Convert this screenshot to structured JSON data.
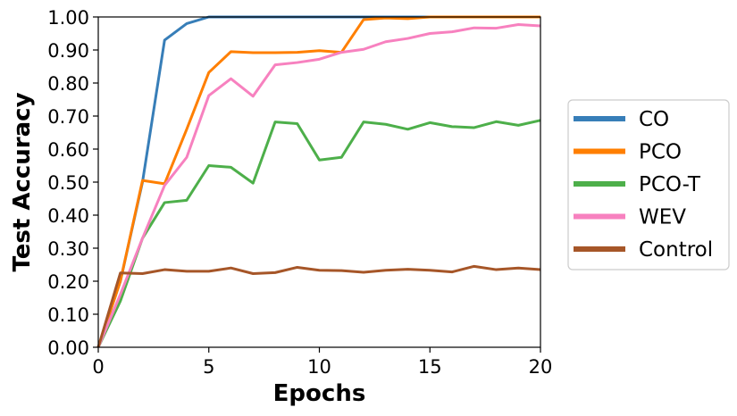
{
  "chart_data": {
    "type": "line",
    "title": "",
    "xlabel": "Epochs",
    "ylabel": "Test Accuracy",
    "xlim": [
      0,
      20
    ],
    "ylim": [
      0,
      1
    ],
    "x_ticks": [
      0,
      5,
      10,
      15,
      20
    ],
    "x_tick_labels": [
      "0",
      "5",
      "10",
      "15",
      "20"
    ],
    "y_ticks": [
      0,
      0.1,
      0.2,
      0.3,
      0.4,
      0.5,
      0.6,
      0.7,
      0.8,
      0.9,
      1.0
    ],
    "y_tick_labels": [
      "0.00",
      "0.10",
      "0.20",
      "0.30",
      "0.40",
      "0.50",
      "0.60",
      "0.70",
      "0.80",
      "0.90",
      "1.00"
    ],
    "grid": false,
    "legend_position": "right-outside",
    "x": [
      0,
      1,
      2,
      3,
      4,
      5,
      6,
      7,
      8,
      9,
      10,
      11,
      12,
      13,
      14,
      15,
      16,
      17,
      18,
      19,
      20
    ],
    "series": [
      {
        "name": "CO",
        "color": "#377eb8",
        "values": [
          0.0,
          0.2,
          0.5,
          0.93,
          0.98,
          1.0,
          1.0,
          1.0,
          1.0,
          1.0,
          1.0,
          1.0,
          1.0,
          1.0,
          1.0,
          1.0,
          1.0,
          1.0,
          1.0,
          1.0,
          1.0
        ]
      },
      {
        "name": "PCO",
        "color": "#ff7f00",
        "values": [
          0.0,
          0.2,
          0.505,
          0.495,
          0.66,
          0.832,
          0.895,
          0.892,
          0.892,
          0.893,
          0.898,
          0.893,
          0.992,
          0.997,
          0.995,
          1.0,
          1.0,
          1.0,
          1.0,
          1.0,
          1.0
        ]
      },
      {
        "name": "PCO-T",
        "color": "#4daf4a",
        "values": [
          0.0,
          0.14,
          0.33,
          0.438,
          0.445,
          0.55,
          0.545,
          0.497,
          0.682,
          0.677,
          0.567,
          0.575,
          0.682,
          0.675,
          0.66,
          0.68,
          0.668,
          0.665,
          0.683,
          0.672,
          0.687
        ]
      },
      {
        "name": "WEV",
        "color": "#f781bf",
        "values": [
          0.0,
          0.16,
          0.33,
          0.49,
          0.575,
          0.762,
          0.813,
          0.76,
          0.855,
          0.862,
          0.872,
          0.893,
          0.902,
          0.925,
          0.935,
          0.95,
          0.955,
          0.967,
          0.966,
          0.977,
          0.973
        ]
      },
      {
        "name": "Control",
        "color": "#a65628",
        "values": [
          0.0,
          0.225,
          0.223,
          0.235,
          0.23,
          0.23,
          0.24,
          0.223,
          0.226,
          0.242,
          0.233,
          0.232,
          0.227,
          0.233,
          0.236,
          0.233,
          0.228,
          0.245,
          0.235,
          0.24,
          0.235
        ]
      }
    ]
  }
}
